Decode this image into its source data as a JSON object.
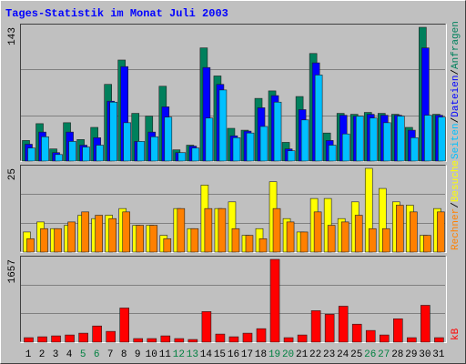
{
  "chart_data": [
    {
      "type": "bar",
      "title": "Tages-Statistik im Monat Juli 2003",
      "legend_separator": "/",
      "ylim": [
        0,
        143
      ],
      "yticks": [
        143
      ],
      "series": [
        {
          "name": "Anfragen",
          "color": "#00805C",
          "values": [
            22,
            40,
            13,
            41,
            23,
            36,
            82,
            108,
            51,
            48,
            80,
            12,
            17,
            121,
            91,
            35,
            33,
            67,
            75,
            20,
            69,
            115,
            30,
            51,
            50,
            52,
            51,
            50,
            36,
            143,
            50
          ]
        },
        {
          "name": "Dateien",
          "color": "#0000FF",
          "values": [
            18,
            31,
            9,
            31,
            17,
            25,
            64,
            101,
            21,
            31,
            58,
            9,
            16,
            100,
            82,
            27,
            32,
            57,
            70,
            13,
            55,
            105,
            22,
            49,
            48,
            50,
            49,
            49,
            33,
            121,
            49
          ]
        },
        {
          "name": "Seiten",
          "color": "#00C0FF",
          "values": [
            14,
            26,
            7,
            21,
            15,
            17,
            63,
            41,
            21,
            26,
            47,
            9,
            14,
            46,
            76,
            25,
            30,
            37,
            63,
            11,
            44,
            92,
            17,
            29,
            48,
            46,
            41,
            48,
            25,
            49,
            47
          ]
        }
      ]
    },
    {
      "type": "bar",
      "legend_separator": "/",
      "ylim": [
        0,
        25
      ],
      "yticks": [
        25
      ],
      "series": [
        {
          "name": "Besuche",
          "color": "#FFFF00",
          "values": [
            6,
            9,
            7,
            8,
            11,
            10,
            11,
            13,
            8,
            8,
            5,
            13,
            7,
            20,
            13,
            15,
            5,
            7,
            21,
            10,
            6,
            16,
            16,
            10,
            15,
            25,
            19,
            15,
            14,
            5,
            13
          ]
        },
        {
          "name": "Rechner",
          "color": "#FF8000",
          "values": [
            4,
            7,
            7,
            9,
            12,
            11,
            10,
            12,
            8,
            8,
            4,
            13,
            7,
            13,
            13,
            7,
            5,
            4,
            13,
            9,
            6,
            12,
            8,
            9,
            11,
            7,
            7,
            14,
            12,
            5,
            12
          ]
        }
      ]
    },
    {
      "type": "bar",
      "ylim": [
        0,
        1657
      ],
      "yticks": [
        1657
      ],
      "categories": [
        "1",
        "2",
        "3",
        "4",
        "5",
        "6",
        "7",
        "8",
        "9",
        "10",
        "11",
        "12",
        "13",
        "14",
        "15",
        "16",
        "17",
        "18",
        "19",
        "20",
        "21",
        "22",
        "23",
        "24",
        "25",
        "26",
        "27",
        "28",
        "29",
        "30",
        "31"
      ],
      "highlight_categories": [
        "5",
        "6",
        "12",
        "13",
        "19",
        "20",
        "26",
        "27"
      ],
      "highlight_color": "#008040",
      "series": [
        {
          "name": "kB",
          "color": "#FF0000",
          "values": [
            90,
            108,
            126,
            144,
            180,
            324,
            216,
            684,
            72,
            72,
            126,
            72,
            54,
            612,
            162,
            108,
            180,
            270,
            1657,
            90,
            144,
            630,
            558,
            720,
            360,
            234,
            144,
            468,
            90,
            738,
            90
          ]
        }
      ]
    }
  ]
}
